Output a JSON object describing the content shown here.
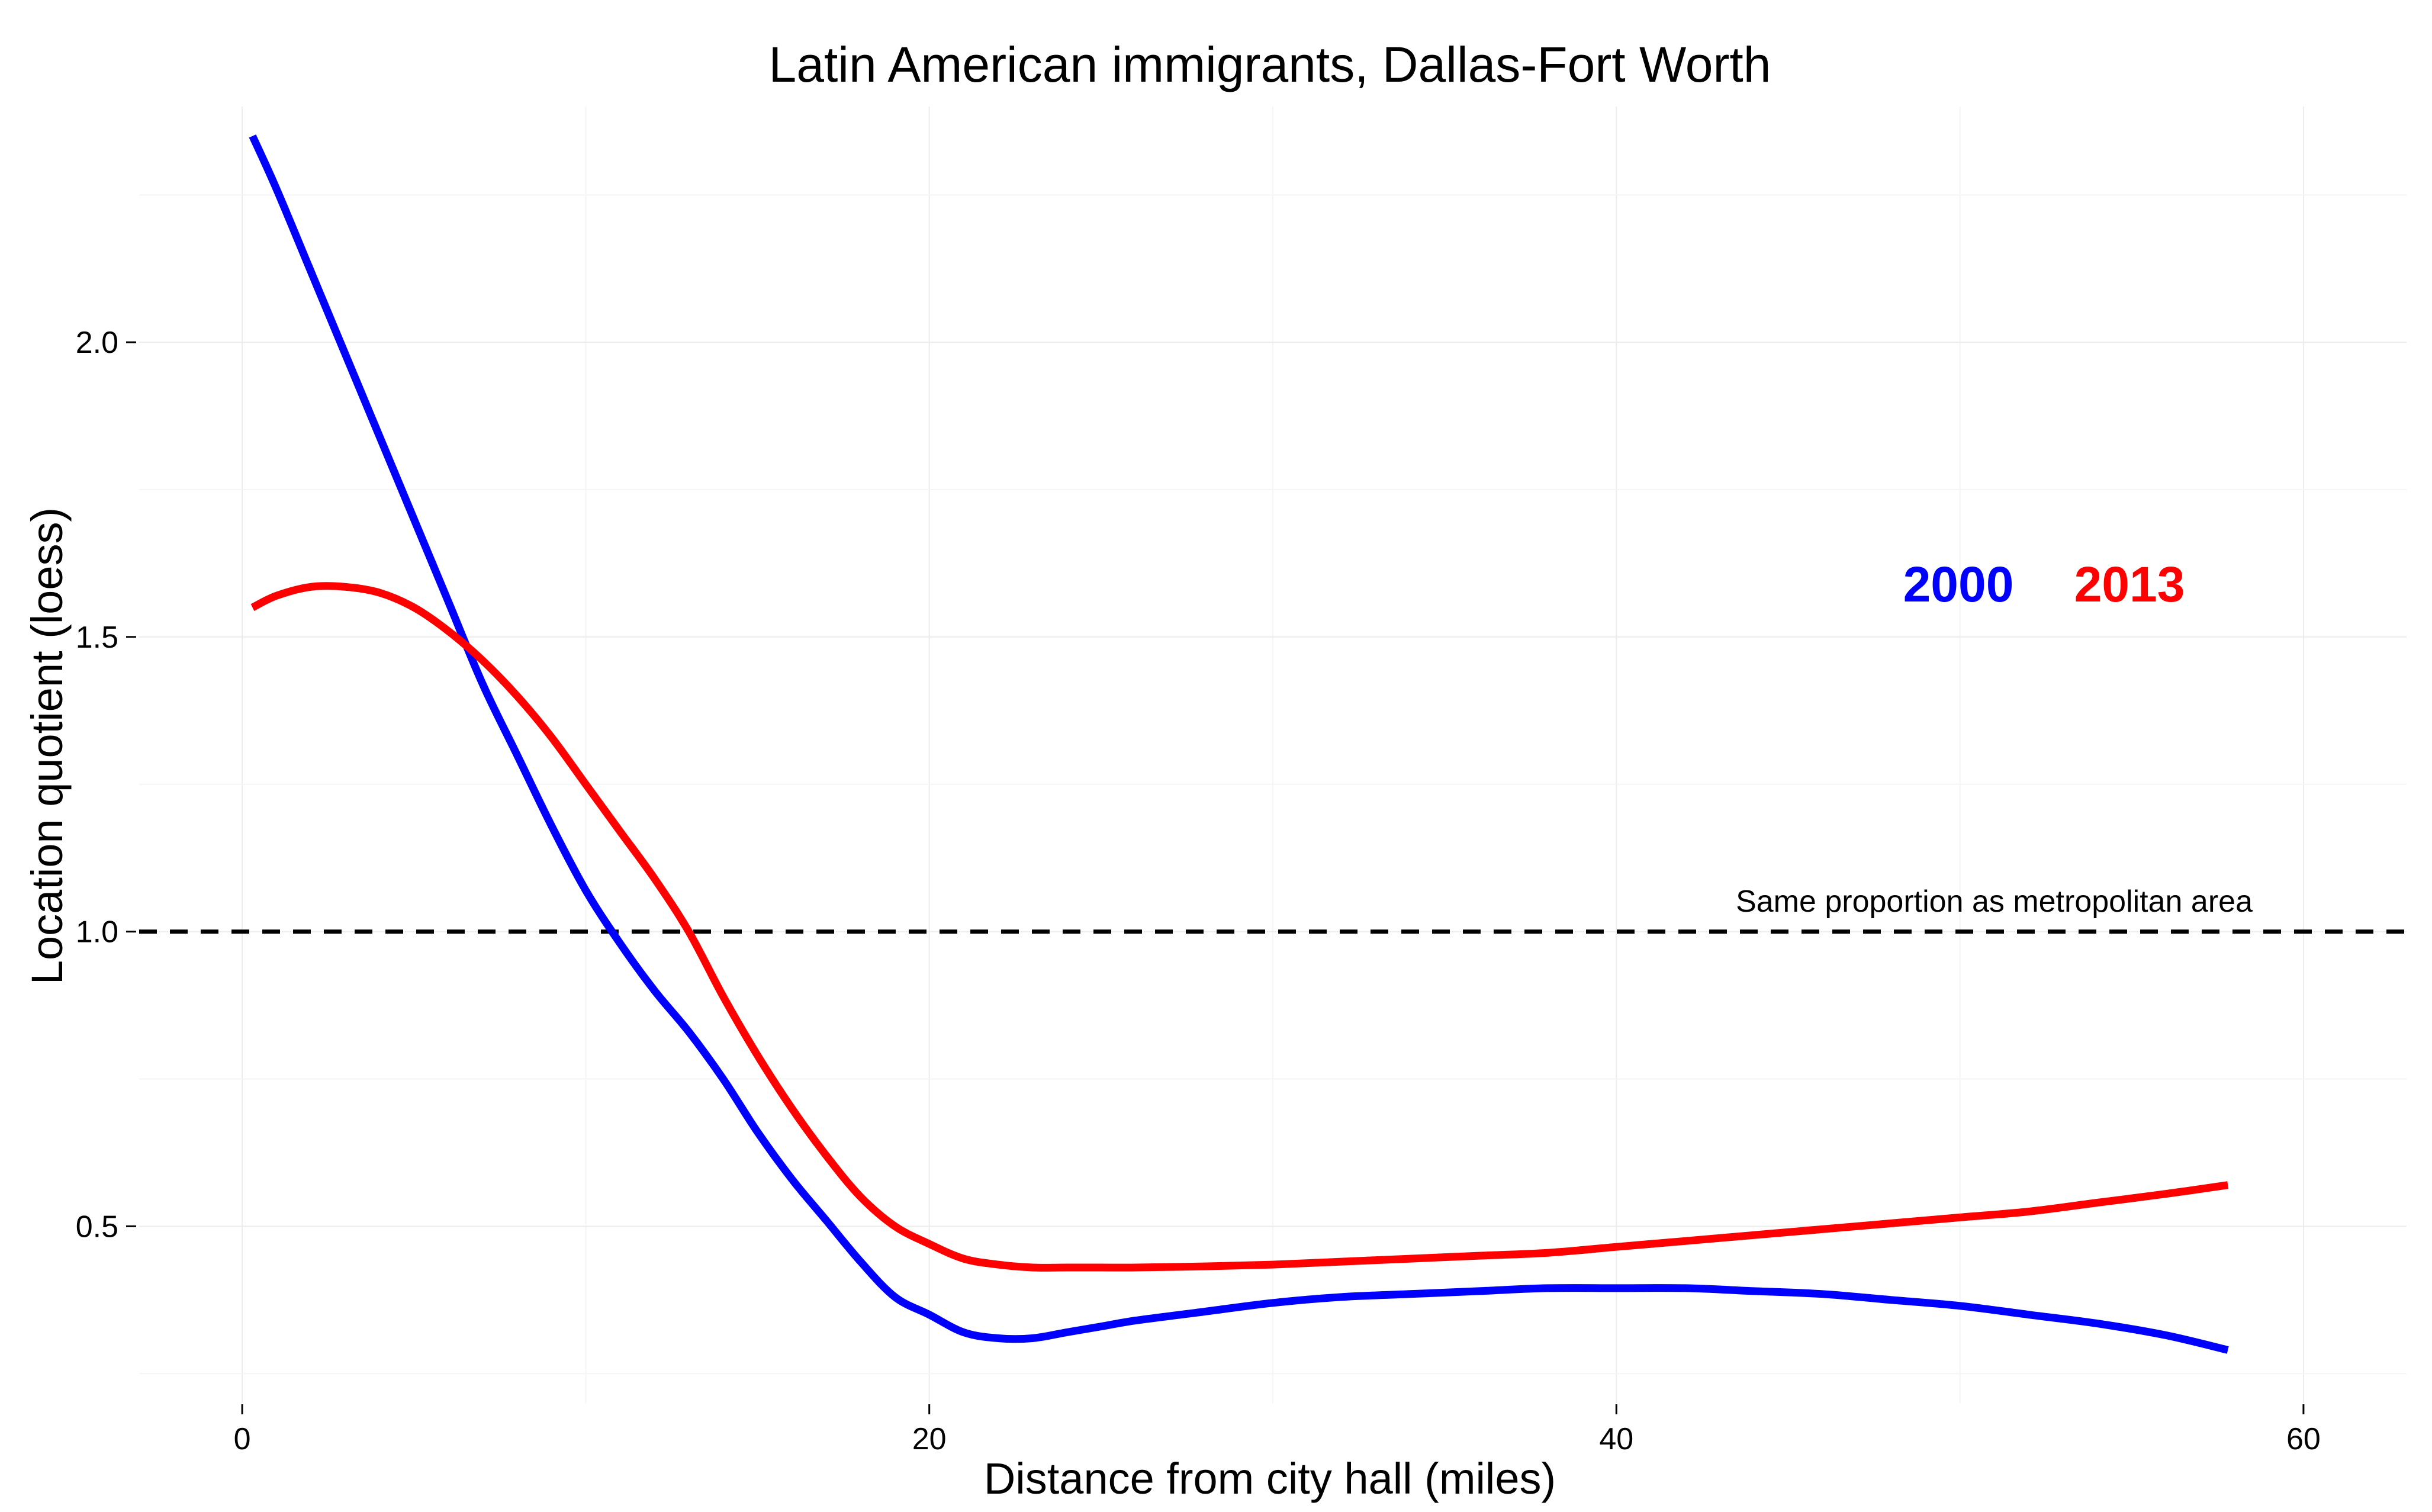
{
  "chart_data": {
    "type": "line",
    "title": "Latin American immigrants, Dallas-Fort Worth",
    "xlabel": "Distance from city hall (miles)",
    "ylabel": "Location quotient (loess)",
    "xlim": [
      -3,
      63
    ],
    "ylim": [
      0.2,
      2.4
    ],
    "x_ticks": [
      0,
      20,
      40,
      60
    ],
    "x_tick_labels": [
      "0",
      "20",
      "40",
      "60"
    ],
    "y_ticks": [
      0.5,
      1.0,
      1.5,
      2.0
    ],
    "y_tick_labels": [
      "0.5",
      "1.0",
      "1.5",
      "2.0"
    ],
    "grid": true,
    "reference_line": {
      "y": 1.0,
      "style": "dashed",
      "color": "#000000",
      "label": "Same proportion as metropolitan area"
    },
    "series": [
      {
        "name": "2000",
        "color": "#0000ff",
        "x": [
          0.3,
          1,
          2,
          3,
          4,
          5,
          6,
          7,
          8,
          9,
          10,
          11,
          12,
          13,
          14,
          15,
          16,
          17,
          18,
          19,
          20,
          21,
          22,
          23,
          24,
          25,
          26,
          28,
          30,
          32,
          34,
          36,
          38,
          40,
          42,
          44,
          46,
          48,
          50,
          52,
          54,
          56,
          57.8
        ],
        "y": [
          2.35,
          2.26,
          2.12,
          1.98,
          1.84,
          1.7,
          1.56,
          1.42,
          1.3,
          1.18,
          1.07,
          0.98,
          0.9,
          0.83,
          0.75,
          0.66,
          0.58,
          0.51,
          0.44,
          0.38,
          0.35,
          0.32,
          0.31,
          0.31,
          0.32,
          0.33,
          0.34,
          0.355,
          0.37,
          0.38,
          0.385,
          0.39,
          0.395,
          0.395,
          0.395,
          0.39,
          0.385,
          0.375,
          0.365,
          0.35,
          0.335,
          0.315,
          0.29
        ]
      },
      {
        "name": "2013",
        "color": "#ff0000",
        "x": [
          0.3,
          1,
          2,
          3,
          4,
          5,
          6,
          7,
          8,
          9,
          10,
          11,
          12,
          13,
          14,
          15,
          16,
          17,
          18,
          19,
          20,
          21,
          22,
          23,
          24,
          25,
          26,
          28,
          30,
          32,
          34,
          36,
          38,
          40,
          42,
          44,
          46,
          48,
          50,
          52,
          54,
          56,
          57.8
        ],
        "y": [
          1.55,
          1.57,
          1.585,
          1.585,
          1.575,
          1.55,
          1.51,
          1.46,
          1.4,
          1.33,
          1.25,
          1.17,
          1.09,
          1.0,
          0.89,
          0.79,
          0.7,
          0.62,
          0.55,
          0.5,
          0.47,
          0.445,
          0.435,
          0.43,
          0.43,
          0.43,
          0.43,
          0.432,
          0.435,
          0.44,
          0.445,
          0.45,
          0.455,
          0.465,
          0.475,
          0.485,
          0.495,
          0.505,
          0.515,
          0.525,
          0.54,
          0.555,
          0.57
        ]
      }
    ],
    "legend": {
      "placement": "right, inside plot",
      "entries": [
        {
          "label": "2000",
          "color": "#0000ff"
        },
        {
          "label": "2013",
          "color": "#ff0000"
        }
      ]
    }
  }
}
